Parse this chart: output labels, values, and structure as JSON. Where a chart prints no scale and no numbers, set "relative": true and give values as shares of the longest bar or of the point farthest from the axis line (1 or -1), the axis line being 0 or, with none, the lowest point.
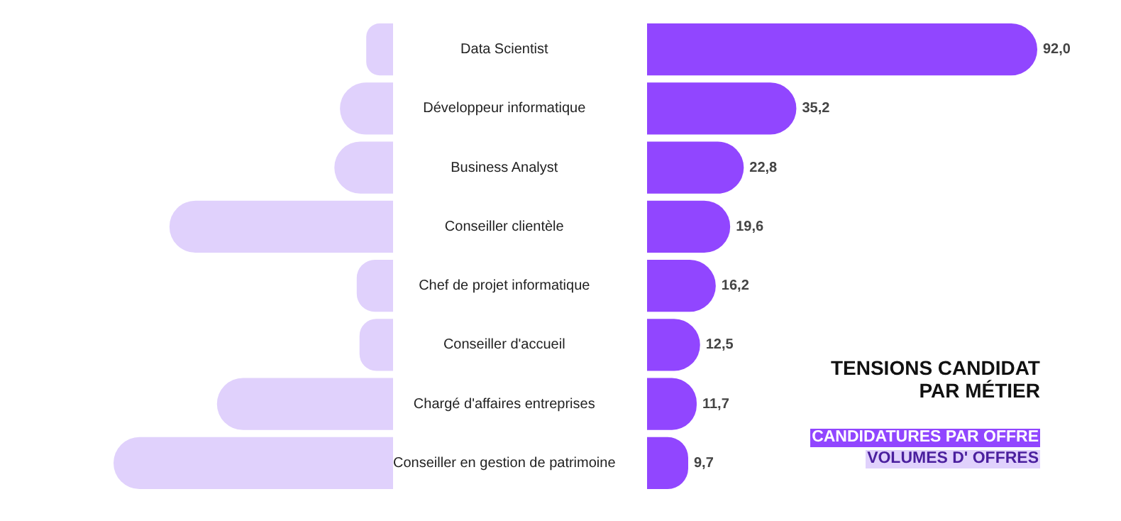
{
  "chart_data": [
    {
      "type": "bar",
      "orientation": "horizontal",
      "relative": true,
      "categories": [
        "Data Scientist",
        "Développeur informatique",
        "Business Analyst",
        "Conseiller clientèle",
        "Chef de projet informatique",
        "Conseiller d'accueil",
        "Chargé d'affaires entreprises",
        "Conseiller en gestion de patrimoine"
      ],
      "tick_labels": "y",
      "grid": false,
      "legend": "bottom right",
      "series": [
        {
          "name": "VOLUMES D' OFFRES",
          "color": "#e0d1fc",
          "values": [
            0.096,
            0.19,
            0.21,
            0.8,
            0.13,
            0.12,
            0.63,
            1
          ]
        }
      ]
    },
    {
      "type": "bar",
      "orientation": "horizontal",
      "title": "TENSIONS CANDIDAT\nPAR MÉTIER",
      "categories": [
        null,
        null,
        null,
        null,
        null,
        null,
        null,
        null
      ],
      "xlim": [
        0,
        92
      ],
      "tick_labels": false,
      "grid": false,
      "legend": "bottom right",
      "data_labels": true,
      "series": [
        {
          "name": "CANDIDATURES PAR OFFRE",
          "color": "#9146ff",
          "values": [
            92.0,
            35.2,
            22.8,
            19.6,
            16.2,
            12.5,
            11.7,
            9.7
          ],
          "value_labels": [
            "92,0",
            "35,2",
            "22,8",
            "19,6",
            "16,2",
            "12,5",
            "11,7",
            "9,7"
          ]
        }
      ]
    }
  ]
}
